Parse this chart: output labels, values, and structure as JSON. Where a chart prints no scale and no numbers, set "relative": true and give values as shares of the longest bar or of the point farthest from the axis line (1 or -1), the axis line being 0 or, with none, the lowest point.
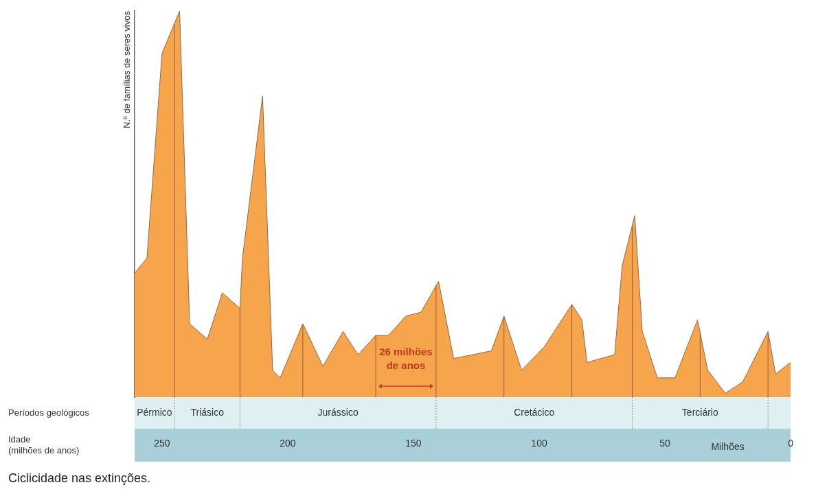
{
  "chart_data": {
    "type": "area",
    "relative": true,
    "ylabel": "N.º de famílias de seres vivos",
    "xlim": [
      261,
      0
    ],
    "xticks": [
      250,
      200,
      150,
      100,
      50,
      0
    ],
    "grid": false,
    "legend": false,
    "marker": "none",
    "x": [
      261,
      256,
      250,
      243,
      239,
      232,
      226,
      219,
      218,
      210,
      206,
      203,
      194,
      186,
      178,
      172,
      165,
      160,
      153,
      147,
      140,
      134,
      119,
      114,
      107,
      98,
      87,
      83,
      81,
      70,
      67,
      62,
      59,
      53,
      46,
      37,
      33,
      26,
      19,
      9,
      6,
      0
    ],
    "series": [
      {
        "color": "#f6a54c",
        "values": [
          0.32,
          0.36,
          0.89,
          1,
          0.19,
          0.15,
          0.27,
          0.23,
          0.36,
          0.78,
          0.07,
          0.05,
          0.19,
          0.08,
          0.17,
          0.11,
          0.16,
          0.16,
          0.21,
          0.22,
          0.3,
          0.1,
          0.12,
          0.21,
          0.07,
          0.13,
          0.24,
          0.2,
          0.09,
          0.11,
          0.34,
          0.47,
          0.17,
          0.05,
          0.05,
          0.2,
          0.07,
          0.01,
          0.04,
          0.17,
          0.06,
          0.09
        ]
      }
    ],
    "ref_lines": [
      {
        "axis": "x",
        "value": 245,
        "color": "#9b5a2e"
      },
      {
        "axis": "x",
        "value": 219,
        "color": "#9b5a2e"
      },
      {
        "axis": "x",
        "value": 194,
        "color": "#9b5a2e"
      },
      {
        "axis": "x",
        "value": 165,
        "color": "#9b5a2e"
      },
      {
        "axis": "x",
        "value": 141,
        "color": "#9b5a2e"
      },
      {
        "axis": "x",
        "value": 114,
        "color": "#9b5a2e"
      },
      {
        "axis": "x",
        "value": 87,
        "color": "#9b5a2e"
      },
      {
        "axis": "x",
        "value": 63,
        "color": "#9b5a2e"
      },
      {
        "axis": "x",
        "value": 36,
        "color": "#9b5a2e"
      },
      {
        "axis": "x",
        "value": 9,
        "color": "#9b5a2e"
      }
    ],
    "annotations": [
      "Períodos geológicos",
      "Pérmico",
      "Triásico",
      "Jurássico",
      "Cretácico",
      "Terciário",
      "Idade (milhões de anos)",
      "Milhões",
      "26 milhões de anos",
      "Ciclicidade nas extinções."
    ]
  }
}
